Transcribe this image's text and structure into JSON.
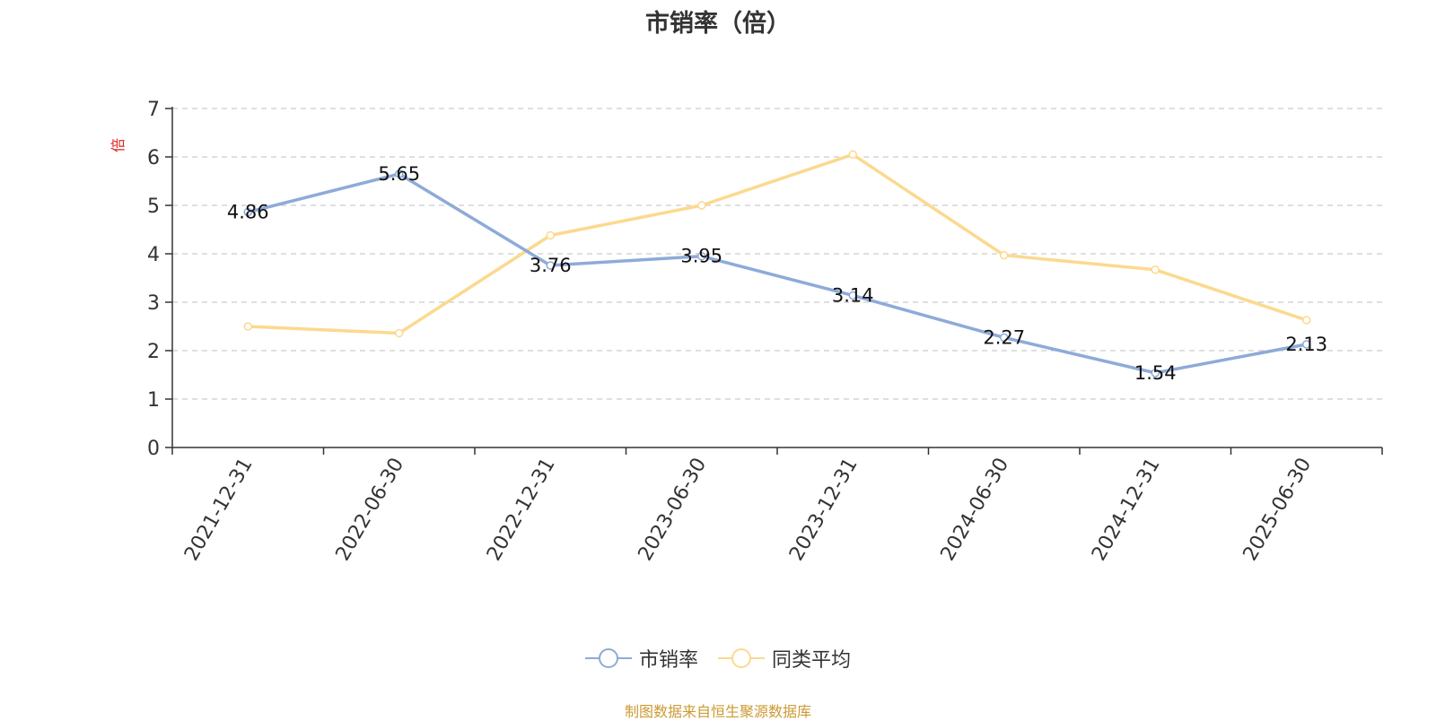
{
  "chart_data": {
    "type": "line",
    "title": "市销率（倍）",
    "ylabel": "倍",
    "categories": [
      "2021-12-31",
      "2022-06-30",
      "2022-12-31",
      "2023-06-30",
      "2023-12-31",
      "2024-06-30",
      "2024-12-31",
      "2025-06-30"
    ],
    "series": [
      {
        "name": "市销率",
        "color": "#8eaad8",
        "values": [
          4.86,
          5.65,
          3.76,
          3.95,
          3.14,
          2.27,
          1.54,
          2.13
        ],
        "show_labels": true
      },
      {
        "name": "同类平均",
        "color": "#fbd98e",
        "values": [
          2.5,
          2.36,
          4.38,
          5.0,
          6.05,
          3.97,
          3.67,
          2.63
        ],
        "show_labels": false
      }
    ],
    "ylim": [
      0,
      7
    ],
    "yticks": [
      0,
      1,
      2,
      3,
      4,
      5,
      6,
      7
    ],
    "grid": true,
    "legend_position": "bottom"
  },
  "source": "制图数据来自恒生聚源数据库",
  "colors": {
    "axis": "#333333",
    "grid": "#cccccc",
    "ylabel": "#e02020",
    "source": "#cc9a33"
  }
}
